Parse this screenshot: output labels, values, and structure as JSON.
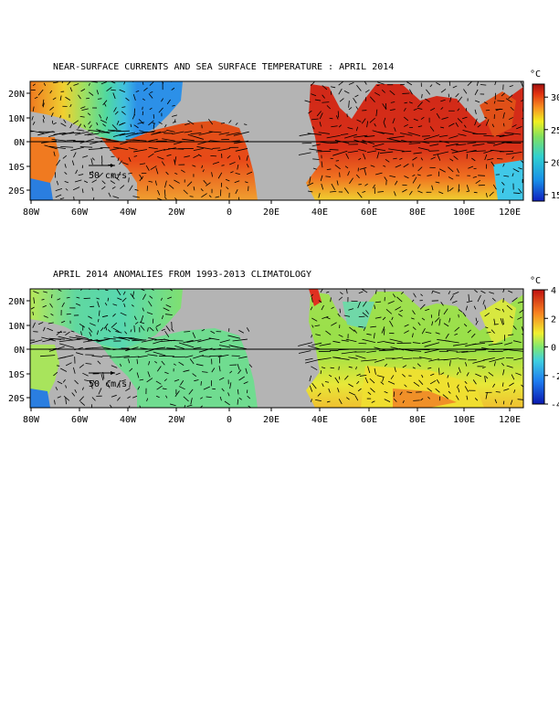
{
  "panels": [
    {
      "title": "NEAR-SURFACE CURRENTS AND SEA SURFACE TEMPERATURE : APRIL 2014",
      "x_ticks": [
        "80W",
        "60W",
        "40W",
        "20W",
        "0",
        "20E",
        "40E",
        "60E",
        "80E",
        "100E",
        "120E"
      ],
      "y_ticks": [
        "20N",
        "10N",
        "0N",
        "10S",
        "20S"
      ],
      "scale_label": "50 cm/s",
      "colorbar": {
        "unit": "°C",
        "ticks": [
          "30",
          "25",
          "20",
          "15"
        ],
        "range": [
          14,
          32
        ]
      }
    },
    {
      "title": "APRIL 2014 ANOMALIES FROM 1993-2013 CLIMATOLOGY",
      "x_ticks": [
        "80W",
        "60W",
        "40W",
        "20W",
        "0",
        "20E",
        "40E",
        "60E",
        "80E",
        "100E",
        "120E"
      ],
      "y_ticks": [
        "20N",
        "10N",
        "0N",
        "10S",
        "20S"
      ],
      "scale_label": "50 cm/s",
      "colorbar": {
        "unit": "°C",
        "ticks": [
          "4",
          "2",
          "0",
          "-2",
          "-4"
        ],
        "range": [
          -4,
          4
        ]
      }
    }
  ],
  "colors": {
    "land": "#b4b4b4",
    "sst_warm": "#d83a1a",
    "sst_cool": "#1f8ee6",
    "anomaly_neutral": "#7be36a"
  }
}
